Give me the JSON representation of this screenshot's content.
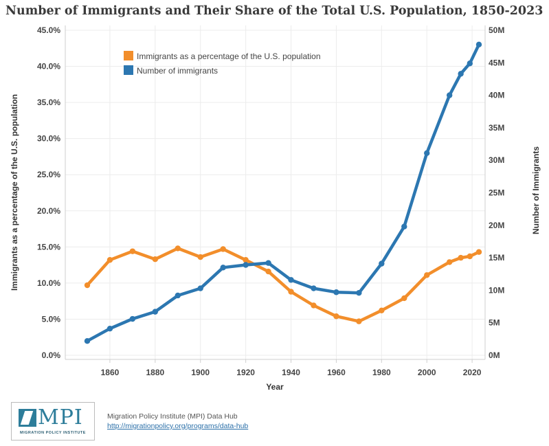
{
  "title": "Number of Immigrants and Their Share of the Total U.S. Population, 1850-2023",
  "footer": {
    "logo_text": "MPI",
    "logo_subtext": "MIGRATION POLICY INSTITUTE",
    "source_name": "Migration Policy Institute (MPI) Data Hub",
    "source_link": "http://migrationpolicy.org/programs/data-hub"
  },
  "chart_data": {
    "type": "line",
    "xlabel": "Year",
    "ylabel_left": "Immigrants as a percentage of the U.S. population",
    "ylabel_right": "Number of Immigrants",
    "xlim": [
      1850,
      2023
    ],
    "x_ticks": [
      1860,
      1880,
      1900,
      1920,
      1940,
      1960,
      1980,
      2000,
      2020
    ],
    "x_tick_labels": [
      "1860",
      "1880",
      "1900",
      "1920",
      "1940",
      "1960",
      "1980",
      "2000",
      "2020"
    ],
    "ylim_left": [
      0,
      45
    ],
    "y_left_ticks": [
      0,
      5,
      10,
      15,
      20,
      25,
      30,
      35,
      40,
      45
    ],
    "y_left_tick_labels": [
      "0.0%",
      "5.0%",
      "10.0%",
      "15.0%",
      "20.0%",
      "25.0%",
      "30.0%",
      "35.0%",
      "40.0%",
      "45.0%"
    ],
    "ylim_right": [
      0,
      50000000
    ],
    "y_right_ticks": [
      0,
      5000000,
      10000000,
      15000000,
      20000000,
      25000000,
      30000000,
      35000000,
      40000000,
      45000000,
      50000000
    ],
    "y_right_tick_labels": [
      "0M",
      "5M",
      "10M",
      "15M",
      "20M",
      "25M",
      "30M",
      "35M",
      "40M",
      "45M",
      "50M"
    ],
    "grid": true,
    "legend_position": "top-left",
    "x": [
      1850,
      1860,
      1870,
      1880,
      1890,
      1900,
      1910,
      1920,
      1930,
      1940,
      1950,
      1960,
      1970,
      1980,
      1990,
      2000,
      2010,
      2015,
      2019,
      2023
    ],
    "series": [
      {
        "name": "Immigrants as a percentage of the U.S. population",
        "axis": "left",
        "color": "#f28e2b",
        "values": [
          9.7,
          13.2,
          14.4,
          13.3,
          14.8,
          13.6,
          14.7,
          13.2,
          11.6,
          8.8,
          6.9,
          5.4,
          4.7,
          6.2,
          7.9,
          11.1,
          12.9,
          13.5,
          13.7,
          14.3
        ]
      },
      {
        "name": "Number of immigrants",
        "axis": "right",
        "color": "#2c77b1",
        "values": [
          2200000,
          4100000,
          5600000,
          6700000,
          9200000,
          10300000,
          13500000,
          13900000,
          14200000,
          11600000,
          10300000,
          9700000,
          9600000,
          14100000,
          19800000,
          31100000,
          40000000,
          43300000,
          44900000,
          47800000
        ]
      }
    ]
  }
}
